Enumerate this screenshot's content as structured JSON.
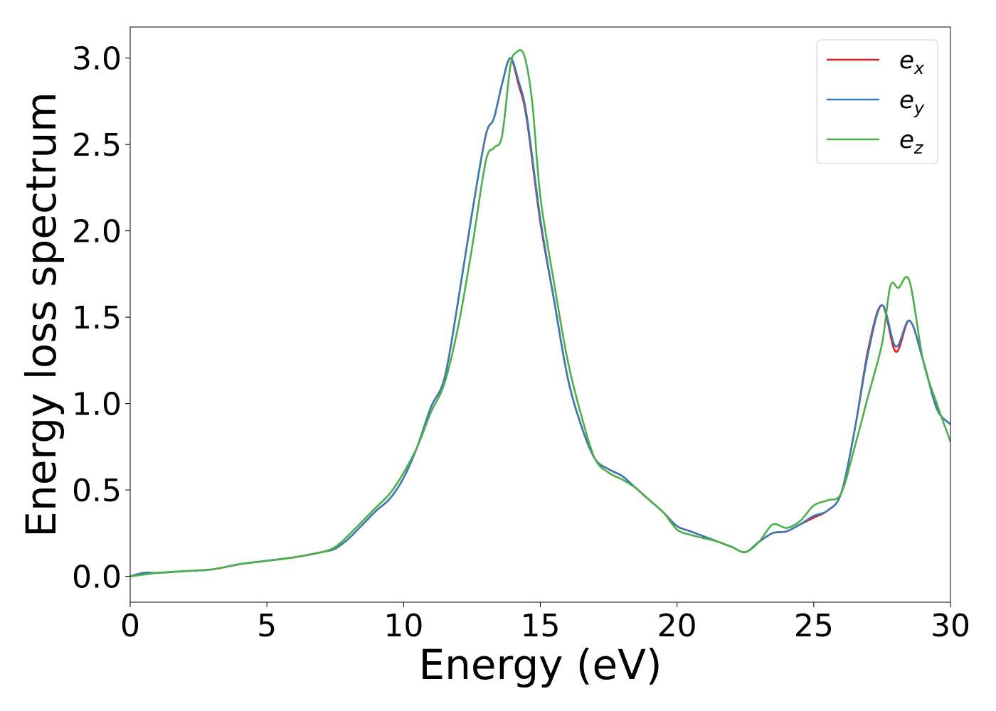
{
  "chart_data": {
    "type": "line",
    "title": "",
    "xlabel": "Energy (eV)",
    "ylabel": "Energy loss spectrum",
    "xlim": [
      0,
      30
    ],
    "ylim": [
      -0.15,
      3.18
    ],
    "xticks": [
      0,
      5,
      10,
      15,
      20,
      25,
      30
    ],
    "xtick_labels": [
      "0",
      "5",
      "10",
      "15",
      "20",
      "25",
      "30"
    ],
    "yticks": [
      0.0,
      0.5,
      1.0,
      1.5,
      2.0,
      2.5,
      3.0
    ],
    "ytick_labels": [
      "0.0",
      "0.5",
      "1.0",
      "1.5",
      "2.0",
      "2.5",
      "3.0"
    ],
    "grid": false,
    "legend_position": "top-right",
    "series": [
      {
        "name": "e_x",
        "label_main": "e",
        "label_sub": "x",
        "color": "#e41a1c",
        "x": [
          0,
          0.5,
          1,
          2,
          3,
          4,
          5,
          6,
          7,
          7.5,
          8,
          8.5,
          9,
          9.5,
          10,
          10.5,
          11,
          11.5,
          12,
          12.5,
          13,
          13.3,
          13.6,
          13.9,
          14.2,
          14.5,
          15,
          15.5,
          16,
          16.5,
          17,
          17.5,
          18,
          18.5,
          19,
          19.5,
          20,
          20.5,
          21,
          21.5,
          22,
          22.5,
          23,
          23.5,
          24,
          24.5,
          25,
          25.5,
          26,
          26.5,
          27,
          27.5,
          28,
          28.5,
          29,
          29.5,
          30
        ],
        "y": [
          0.0,
          0.02,
          0.02,
          0.03,
          0.04,
          0.07,
          0.09,
          0.11,
          0.14,
          0.16,
          0.22,
          0.3,
          0.38,
          0.45,
          0.57,
          0.75,
          0.98,
          1.15,
          1.6,
          2.1,
          2.55,
          2.65,
          2.85,
          3.0,
          2.85,
          2.65,
          2.05,
          1.6,
          1.15,
          0.87,
          0.68,
          0.62,
          0.58,
          0.51,
          0.44,
          0.37,
          0.29,
          0.26,
          0.23,
          0.2,
          0.17,
          0.14,
          0.2,
          0.25,
          0.26,
          0.3,
          0.34,
          0.38,
          0.48,
          0.85,
          1.32,
          1.57,
          1.3,
          1.48,
          1.25,
          0.97,
          0.88
        ]
      },
      {
        "name": "e_y",
        "label_main": "e",
        "label_sub": "y",
        "color": "#377eb8",
        "x": [
          0,
          0.5,
          1,
          2,
          3,
          4,
          5,
          6,
          7,
          7.5,
          8,
          8.5,
          9,
          9.5,
          10,
          10.5,
          11,
          11.5,
          12,
          12.5,
          13,
          13.3,
          13.6,
          13.9,
          14.2,
          14.5,
          15,
          15.5,
          16,
          16.5,
          17,
          17.5,
          18,
          18.5,
          19,
          19.5,
          20,
          20.5,
          21,
          21.5,
          22,
          22.5,
          23,
          23.5,
          24,
          24.5,
          25,
          25.5,
          26,
          26.5,
          27,
          27.5,
          28,
          28.5,
          29,
          29.5,
          30
        ],
        "y": [
          0.0,
          0.02,
          0.02,
          0.03,
          0.04,
          0.07,
          0.09,
          0.11,
          0.14,
          0.16,
          0.22,
          0.3,
          0.38,
          0.45,
          0.57,
          0.75,
          0.98,
          1.15,
          1.6,
          2.1,
          2.55,
          2.65,
          2.85,
          3.0,
          2.87,
          2.67,
          2.07,
          1.6,
          1.15,
          0.87,
          0.68,
          0.62,
          0.58,
          0.51,
          0.44,
          0.37,
          0.29,
          0.26,
          0.23,
          0.2,
          0.17,
          0.14,
          0.2,
          0.25,
          0.26,
          0.3,
          0.35,
          0.38,
          0.48,
          0.85,
          1.3,
          1.57,
          1.33,
          1.48,
          1.25,
          0.97,
          0.88
        ]
      },
      {
        "name": "e_z",
        "label_main": "e",
        "label_sub": "z",
        "color": "#4daf4a",
        "x": [
          0,
          0.5,
          1,
          2,
          3,
          4,
          5,
          6,
          7,
          7.5,
          8,
          8.5,
          9,
          9.5,
          10,
          10.5,
          11,
          11.5,
          12,
          12.5,
          13,
          13.3,
          13.6,
          13.9,
          14.1,
          14.4,
          14.7,
          15,
          15.5,
          16,
          16.5,
          17,
          17.5,
          18,
          18.5,
          19,
          19.5,
          20,
          20.5,
          21,
          21.5,
          22,
          22.5,
          23,
          23.5,
          24,
          24.5,
          25,
          25.5,
          26,
          26.5,
          27,
          27.5,
          27.8,
          28.1,
          28.5,
          29,
          29.5,
          30
        ],
        "y": [
          0.0,
          0.01,
          0.02,
          0.03,
          0.04,
          0.07,
          0.09,
          0.11,
          0.14,
          0.17,
          0.24,
          0.32,
          0.4,
          0.48,
          0.6,
          0.75,
          0.95,
          1.12,
          1.45,
          1.9,
          2.4,
          2.48,
          2.55,
          2.95,
          3.03,
          3.02,
          2.75,
          2.2,
          1.7,
          1.25,
          0.93,
          0.68,
          0.6,
          0.56,
          0.51,
          0.44,
          0.37,
          0.27,
          0.24,
          0.22,
          0.2,
          0.17,
          0.14,
          0.2,
          0.3,
          0.28,
          0.32,
          0.41,
          0.44,
          0.48,
          0.75,
          1.05,
          1.35,
          1.68,
          1.67,
          1.71,
          1.25,
          1.0,
          0.78
        ]
      }
    ]
  }
}
